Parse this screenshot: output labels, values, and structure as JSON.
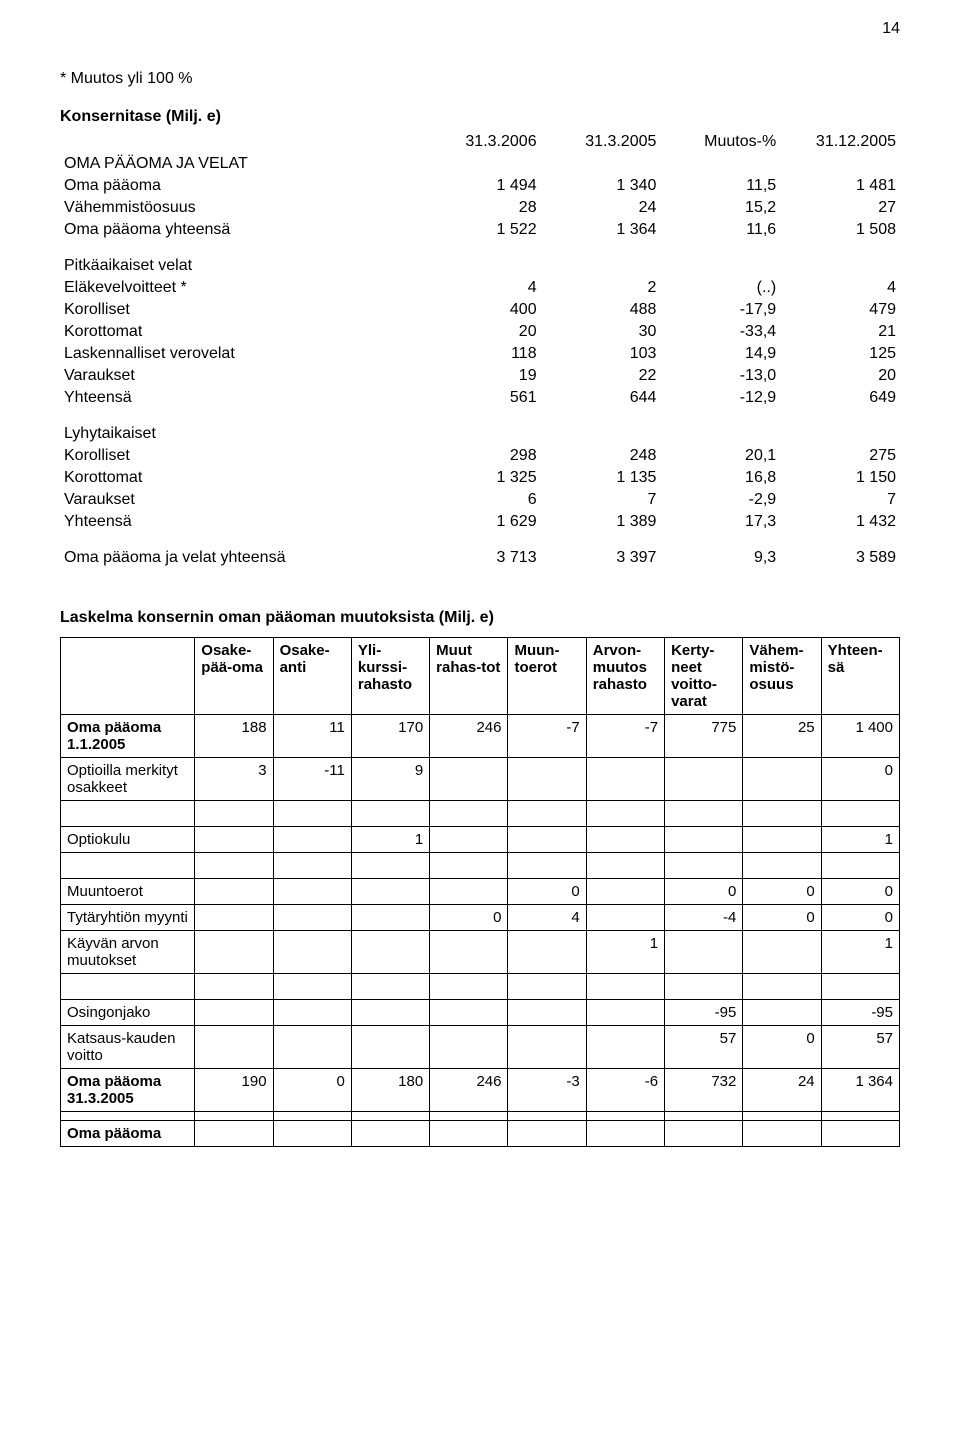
{
  "page_number": "14",
  "note": "* Muutos yli 100 %",
  "fin_table": {
    "title": "Konsernitase (Milj. e)",
    "cols": [
      "31.3.2006",
      "31.3.2005",
      "Muutos-%",
      "31.12.2005"
    ],
    "heading_row": "OMA PÄÄOMA JA VELAT",
    "rows_1": [
      {
        "label": "Oma pääoma",
        "c": [
          "1 494",
          "1 340",
          "11,5",
          "1 481"
        ]
      },
      {
        "label": "Vähemmistöosuus",
        "c": [
          "28",
          "24",
          "15,2",
          "27"
        ]
      },
      {
        "label": "Oma pääoma yhteensä",
        "c": [
          "1 522",
          "1 364",
          "11,6",
          "1 508"
        ]
      }
    ],
    "group2_label": "Pitkäaikaiset velat",
    "rows_2": [
      {
        "label": "Eläkevelvoitteet *",
        "c": [
          "4",
          "2",
          "(..)",
          "4"
        ]
      },
      {
        "label": "Korolliset",
        "c": [
          "400",
          "488",
          "-17,9",
          "479"
        ]
      },
      {
        "label": "Korottomat",
        "c": [
          "20",
          "30",
          "-33,4",
          "21"
        ]
      },
      {
        "label": "Laskennalliset verovelat",
        "c": [
          "118",
          "103",
          "14,9",
          "125"
        ]
      },
      {
        "label": "Varaukset",
        "c": [
          "19",
          "22",
          "-13,0",
          "20"
        ]
      },
      {
        "label": "Yhteensä",
        "c": [
          "561",
          "644",
          "-12,9",
          "649"
        ]
      }
    ],
    "group3_label": "Lyhytaikaiset",
    "rows_3": [
      {
        "label": "Korolliset",
        "c": [
          "298",
          "248",
          "20,1",
          "275"
        ]
      },
      {
        "label": "Korottomat",
        "c": [
          "1 325",
          "1 135",
          "16,8",
          "1 150"
        ]
      },
      {
        "label": "Varaukset",
        "c": [
          "6",
          "7",
          "-2,9",
          "7"
        ]
      },
      {
        "label": "Yhteensä",
        "c": [
          "1 629",
          "1 389",
          "17,3",
          "1 432"
        ]
      }
    ],
    "total_row": {
      "label": "Oma pääoma ja velat yhteensä",
      "c": [
        "3 713",
        "3 397",
        "9,3",
        "3 589"
      ]
    }
  },
  "matrix": {
    "title": "Laskelma konsernin oman pääoman muutoksista (Milj. e)",
    "cols": [
      "",
      "Osake-pää-oma",
      "Osake-anti",
      "Yli-kurssi-rahasto",
      "Muut rahas-tot",
      "Muun-toerot",
      "Arvon-muutos rahasto",
      "Kerty-neet voitto-varat",
      "Vähem-mistö-osuus",
      "Yhteen-sä"
    ],
    "rows": [
      {
        "label": "Oma pääoma 1.1.2005",
        "bold": true,
        "c": [
          "188",
          "11",
          "170",
          "246",
          "-7",
          "-7",
          "775",
          "25",
          "1 400"
        ]
      },
      {
        "label": "Optioilla merkityt osakkeet",
        "c": [
          "3",
          "-11",
          "9",
          "",
          "",
          "",
          "",
          "",
          "0"
        ]
      },
      {
        "label": "Optiokulu",
        "spacer_before": true,
        "c": [
          "",
          "",
          "1",
          "",
          "",
          "",
          "",
          "",
          "1"
        ]
      },
      {
        "label": "Muuntoerot",
        "spacer_before": true,
        "c": [
          "",
          "",
          "",
          "",
          "0",
          "",
          "0",
          "0",
          "0"
        ]
      },
      {
        "label": "Tytäryhtiön myynti",
        "c": [
          "",
          "",
          "",
          "0",
          "4",
          "",
          "-4",
          "0",
          "0"
        ]
      },
      {
        "label": "Käyvän arvon muutokset",
        "c": [
          "",
          "",
          "",
          "",
          "",
          "1",
          "",
          "",
          "1"
        ]
      },
      {
        "label": "Osingonjako",
        "spacer_before": true,
        "c": [
          "",
          "",
          "",
          "",
          "",
          "",
          "-95",
          "",
          "-95"
        ]
      },
      {
        "label": "Katsaus-kauden voitto",
        "c": [
          "",
          "",
          "",
          "",
          "",
          "",
          "57",
          "0",
          "57"
        ]
      },
      {
        "label": "Oma pääoma 31.3.2005",
        "bold": true,
        "c": [
          "190",
          "0",
          "180",
          "246",
          "-3",
          "-6",
          "732",
          "24",
          "1 364"
        ]
      },
      {
        "label": "",
        "spacer_before": false,
        "c": [
          "",
          "",
          "",
          "",
          "",
          "",
          "",
          "",
          ""
        ]
      },
      {
        "label": "Oma pääoma",
        "bold": true,
        "c": [
          "",
          "",
          "",
          "",
          "",
          "",
          "",
          "",
          ""
        ]
      }
    ]
  }
}
